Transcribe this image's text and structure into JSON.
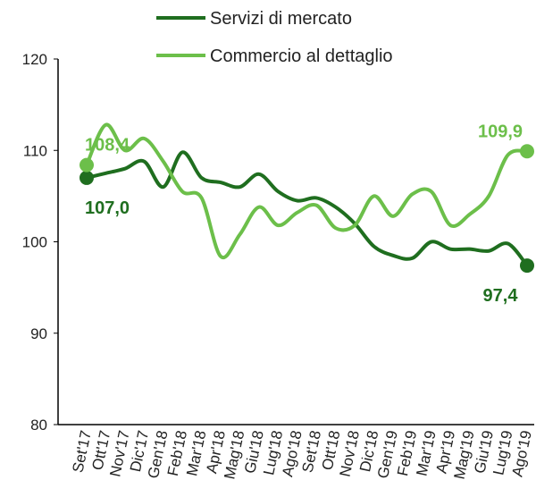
{
  "chart_data": {
    "type": "line",
    "categories": [
      "Set'17",
      "Ott'17",
      "Nov'17",
      "Dic'17",
      "Gen'18",
      "Feb'18",
      "Mar'18",
      "Apr'18",
      "Mag'18",
      "Giu'18",
      "Lug'18",
      "Ago'18",
      "Set'18",
      "Ott'18",
      "Nov'18",
      "Dic'18",
      "Gen'19",
      "Feb'19",
      "Mar'19",
      "Apr'19",
      "Mag'19",
      "Giu'19",
      "Lug'19",
      "Ago'19"
    ],
    "series": [
      {
        "name": "Servizi di mercato",
        "color": "#1f6e1f",
        "values": [
          107.0,
          107.5,
          108.0,
          108.8,
          106.0,
          109.8,
          107.0,
          106.5,
          106.0,
          107.4,
          105.5,
          104.5,
          104.8,
          103.8,
          102.0,
          99.5,
          98.5,
          98.2,
          100.0,
          99.2,
          99.2,
          99.0,
          99.8,
          97.4
        ],
        "value_labels": [
          "107,0",
          null,
          null,
          null,
          null,
          null,
          null,
          null,
          null,
          null,
          null,
          null,
          null,
          null,
          null,
          null,
          null,
          null,
          null,
          null,
          null,
          null,
          null,
          "97,4"
        ]
      },
      {
        "name": "Commercio al dettaglio",
        "color": "#6cbf4a",
        "values": [
          108.4,
          112.8,
          110.0,
          111.3,
          108.8,
          105.5,
          104.8,
          98.4,
          100.8,
          103.8,
          101.8,
          103.2,
          104.0,
          101.5,
          101.8,
          105.0,
          102.8,
          105.2,
          105.5,
          101.8,
          103.0,
          105.0,
          109.5,
          109.9
        ],
        "value_labels": [
          "108,4",
          null,
          null,
          null,
          null,
          null,
          null,
          null,
          null,
          null,
          null,
          null,
          null,
          null,
          null,
          null,
          null,
          null,
          null,
          null,
          null,
          null,
          null,
          "109,9"
        ]
      }
    ],
    "ylim": [
      80,
      120
    ],
    "yticks": [
      80,
      90,
      100,
      110,
      120
    ],
    "grid": false
  }
}
